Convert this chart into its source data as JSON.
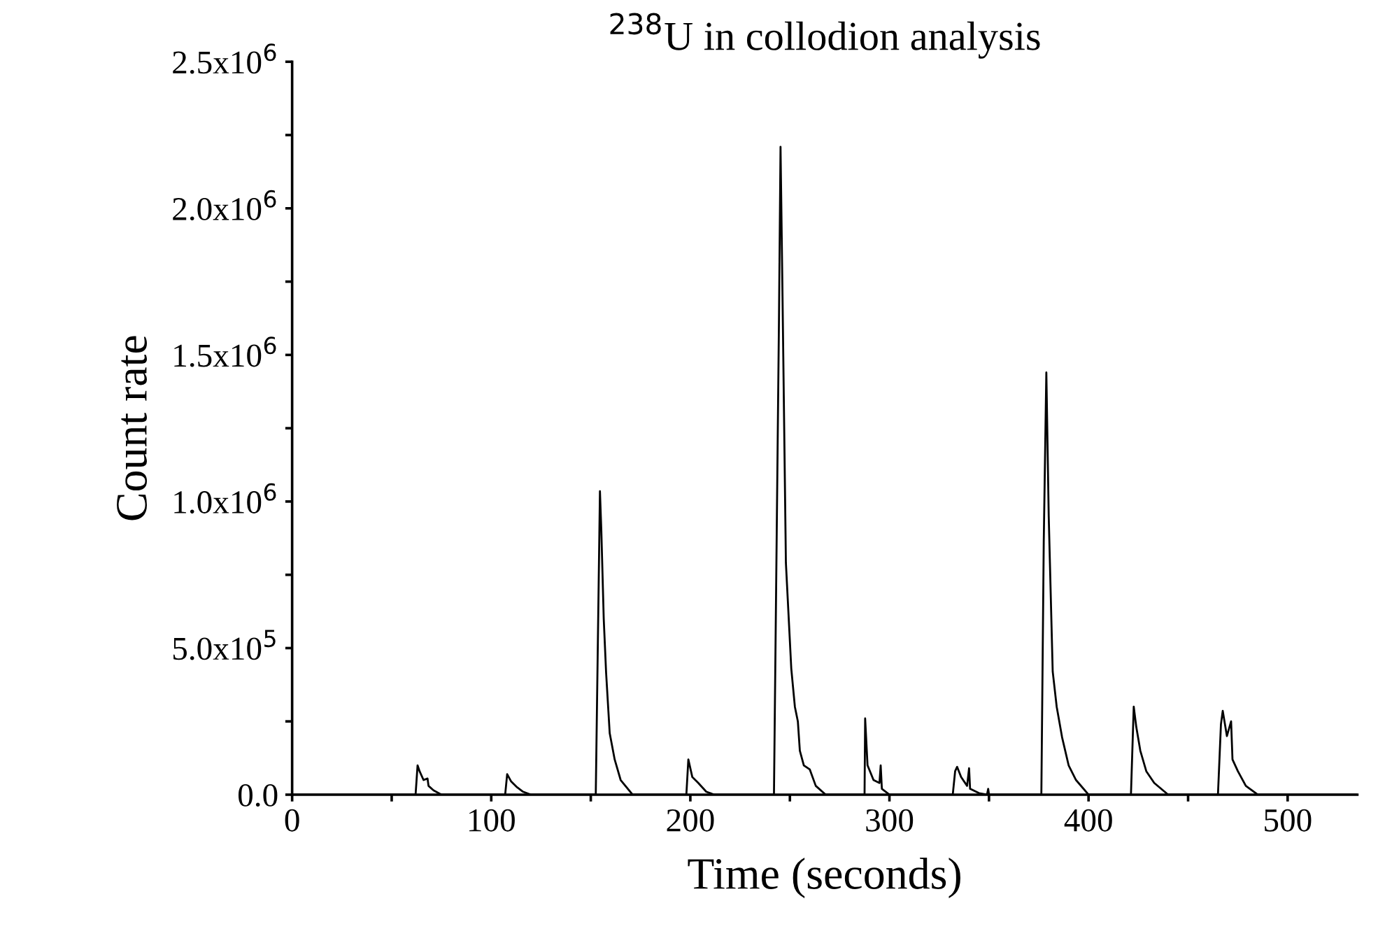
{
  "chart_data": {
    "type": "line",
    "title": "$^{238}$U in collodion analysis",
    "xlabel": "Time (seconds)",
    "ylabel": "Count rate",
    "xlim": [
      0,
      535
    ],
    "ylim": [
      0,
      2500000
    ],
    "xticks": [
      0,
      {
        "value": 50,
        "label": null
      },
      100,
      {
        "value": 150,
        "label": null
      },
      200,
      {
        "value": 250,
        "label": null
      },
      300,
      {
        "value": 350,
        "label": null
      },
      400,
      {
        "value": 450,
        "label": null
      },
      500
    ],
    "yticks": [
      {
        "value": 0,
        "label": "0.0"
      },
      {
        "value": 250000,
        "label": null
      },
      {
        "value": 500000,
        "label": "5.0x10$^{5}$"
      },
      {
        "value": 750000,
        "label": null
      },
      {
        "value": 1000000,
        "label": "1.0x10$^{6}$"
      },
      {
        "value": 1250000,
        "label": null
      },
      {
        "value": 1500000,
        "label": "1.5x10$^{6}$"
      },
      {
        "value": 1750000,
        "label": null
      },
      {
        "value": 2000000,
        "label": "2.0x10$^{6}$"
      },
      {
        "value": 2250000,
        "label": null
      },
      {
        "value": 2500000,
        "label": "2.5x10$^{6}$"
      }
    ],
    "grid": false,
    "marker": "none",
    "line_style": "solid",
    "series": [
      {
        "color": "#000000",
        "x": [
          0,
          62,
          63,
          64,
          66,
          68,
          68.5,
          71,
          75,
          107,
          108,
          110,
          113,
          116,
          120,
          152.5,
          154.6,
          155.3,
          156.5,
          157.7,
          159.5,
          162,
          165,
          171,
          198,
          199,
          201,
          204,
          208,
          212,
          242,
          244.5,
          245.3,
          246.3,
          248,
          250.7,
          252.5,
          254,
          255,
          257,
          260,
          263,
          268,
          287.5,
          287.8,
          289,
          292,
          295,
          295.6,
          296.2,
          300,
          331.8,
          333,
          334,
          336,
          339,
          340,
          340.5,
          345,
          349,
          349.6,
          350,
          376.3,
          377.5,
          378.8,
          380,
          382,
          384,
          386.7,
          390,
          393.7,
          400,
          421.3,
          422.7,
          424,
          426,
          429,
          433,
          440,
          465,
          466.5,
          467.4,
          469.5,
          471.6,
          472.3,
          475,
          479,
          485,
          535
        ],
        "values": [
          0,
          0,
          100000,
          80000,
          50000,
          55000,
          30000,
          15000,
          0,
          0,
          70000,
          45000,
          25000,
          10000,
          0,
          0,
          1035000,
          900000,
          600000,
          415000,
          210000,
          120000,
          50000,
          0,
          0,
          120000,
          60000,
          40000,
          10000,
          0,
          0,
          1610000,
          2210000,
          1700000,
          790000,
          430000,
          300000,
          250000,
          150000,
          100000,
          86000,
          30000,
          0,
          0,
          260000,
          100000,
          50000,
          40000,
          100000,
          20000,
          0,
          0,
          80000,
          95000,
          60000,
          30000,
          90000,
          20000,
          5000,
          0,
          20000,
          0,
          0,
          860000,
          1440000,
          950000,
          420000,
          300000,
          196000,
          100000,
          50000,
          0,
          0,
          300000,
          230000,
          150000,
          80000,
          40000,
          0,
          0,
          240000,
          286000,
          200000,
          250000,
          120000,
          80000,
          30000,
          0,
          0
        ]
      }
    ]
  }
}
